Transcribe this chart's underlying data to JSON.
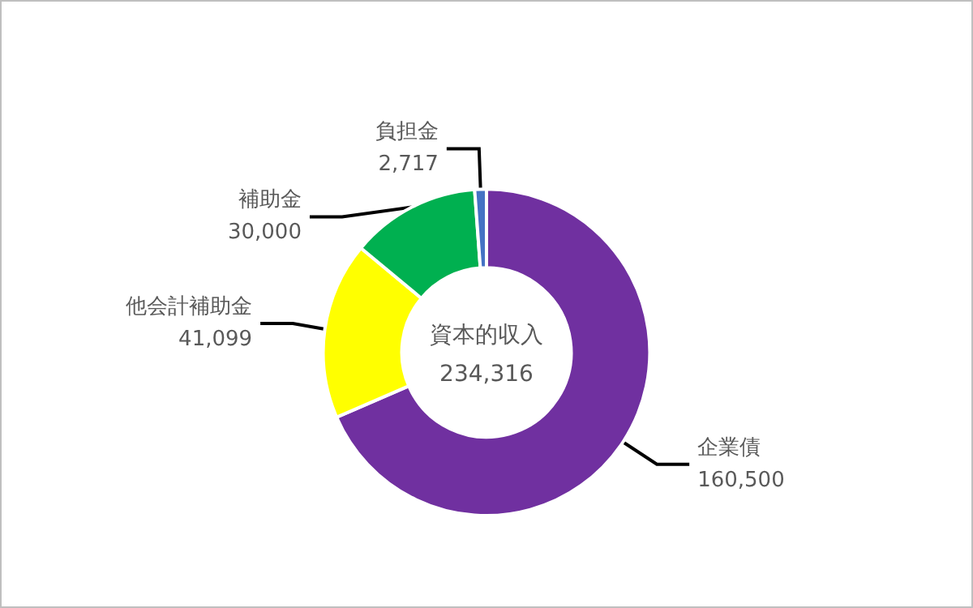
{
  "chart_data": {
    "type": "donut",
    "title": "資本的収入",
    "subtitle": "234,316",
    "categories": [
      "企業債",
      "他会計補助金",
      "補助金",
      "負担金"
    ],
    "values": [
      160500,
      41099,
      30000,
      2717
    ],
    "colors": [
      "#7030a0",
      "#ffff00",
      "#00b050",
      "#4472c4"
    ],
    "value_labels": [
      "160,500",
      "41,099",
      "30,000",
      "2,717"
    ],
    "legend": false
  }
}
